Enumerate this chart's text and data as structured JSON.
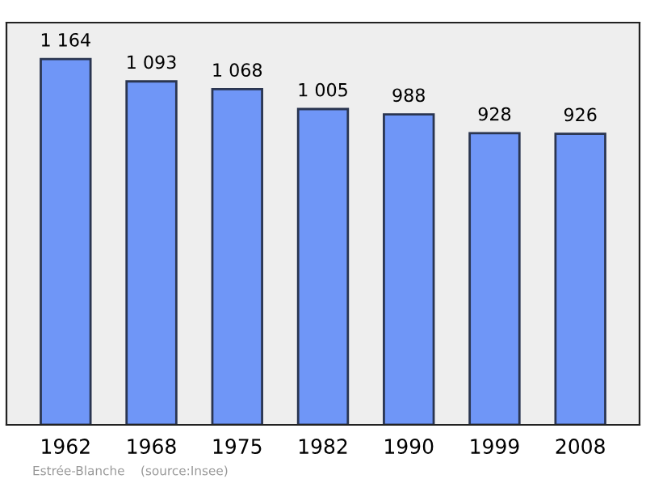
{
  "chart_data": {
    "type": "bar",
    "categories": [
      "1962",
      "1968",
      "1975",
      "1982",
      "1990",
      "1999",
      "2008"
    ],
    "values": [
      1164,
      1093,
      1068,
      1005,
      988,
      928,
      926
    ],
    "value_labels": [
      "1 164",
      "1 093",
      "1 068",
      "1 005",
      "988",
      "928",
      "926"
    ],
    "color": "#6f96f7",
    "ylim": [
      0,
      1280
    ],
    "tick_labels": "x",
    "grid": false,
    "legend": false,
    "annotations": [
      "Estrée-Blanche    (source:Insee)"
    ]
  }
}
